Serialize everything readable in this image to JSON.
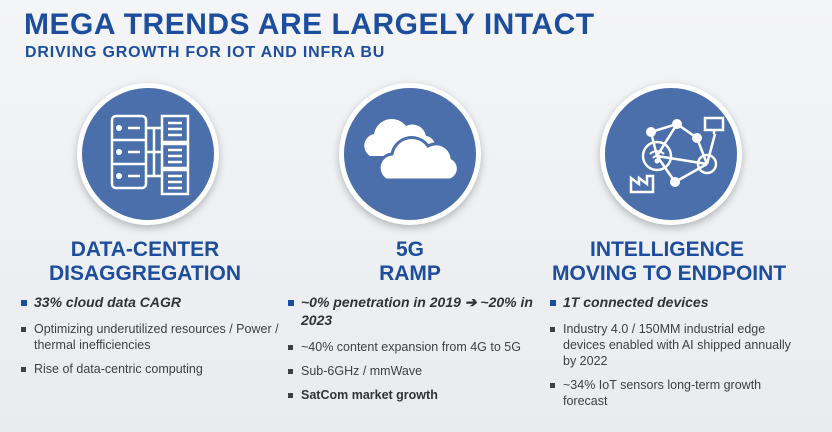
{
  "header": {
    "title": "MEGA TRENDS ARE LARGELY INTACT",
    "subtitle": "DRIVING GROWTH FOR IOT AND INFRA BU"
  },
  "colors": {
    "brand_blue": "#1d4e9e",
    "circle_fill": "#4a6faa",
    "text_gray": "#404040"
  },
  "columns": [
    {
      "icon": "server-documents-icon",
      "heading_line1": "DATA-CENTER",
      "heading_line2": "DISAGGREGATION",
      "bullets": [
        "33% cloud data CAGR",
        "Optimizing underutilized resources / Power / thermal inefficiencies",
        "Rise of data-centric computing"
      ]
    },
    {
      "icon": "clouds-icon",
      "heading_line1": "5G",
      "heading_line2": "RAMP",
      "bullets": [
        "~0% penetration in 2019 ➔ ~20% in 2023",
        "~40% content expansion from 4G to 5G",
        "Sub-6GHz / mmWave",
        "SatCom market growth"
      ]
    },
    {
      "icon": "iot-network-icon",
      "heading_line1": "INTELLIGENCE",
      "heading_line2": "MOVING TO ENDPOINT",
      "bullets": [
        "1T connected devices",
        "Industry 4.0 / 150MM industrial edge devices enabled with AI shipped annually by 2022",
        "~34% IoT sensors long-term growth forecast"
      ]
    }
  ]
}
